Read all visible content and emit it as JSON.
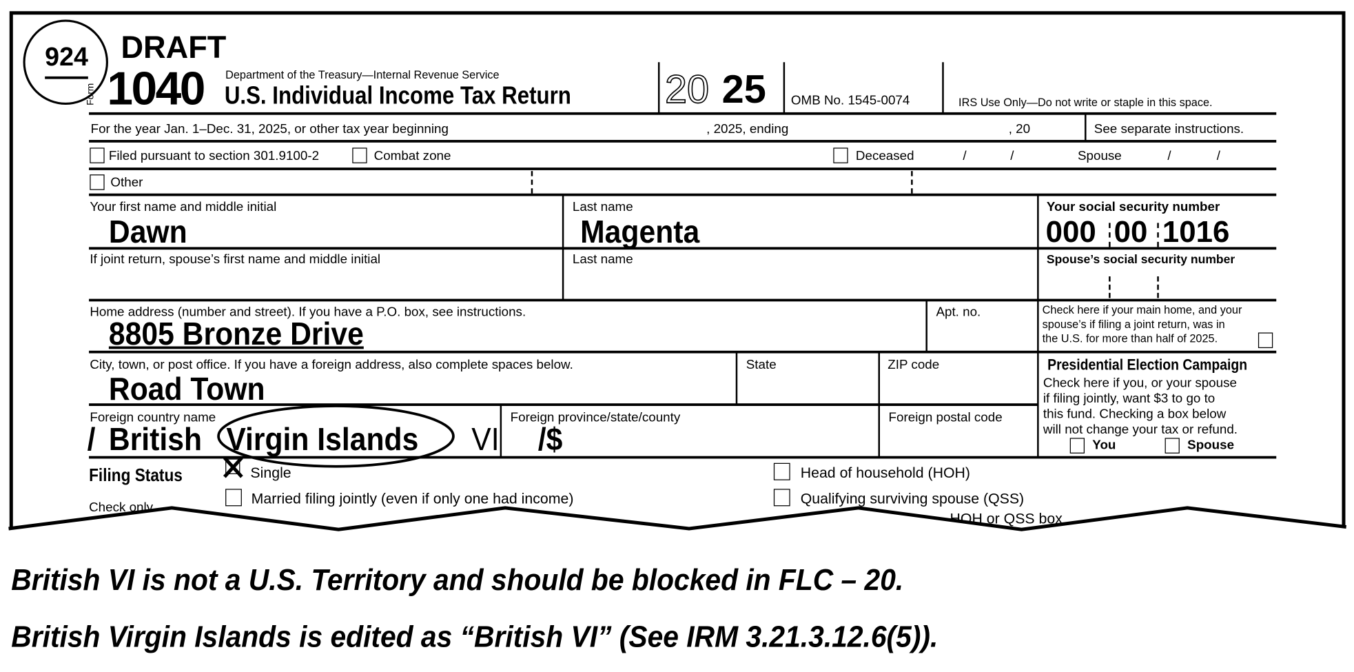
{
  "stamp": {
    "code": "924"
  },
  "header": {
    "draft": "DRAFT",
    "form_word": "Form",
    "form_number": "1040",
    "department": "Department of the Treasury—Internal Revenue Service",
    "title": "U.S. Individual Income Tax Return",
    "year_outline": "20",
    "year_bold": "25",
    "omb": "OMB No. 1545-0074",
    "irs_use": "IRS Use Only—Do not write or staple in this space."
  },
  "tax_year_row": {
    "label": "For the year Jan. 1–Dec. 31, 2025, or other tax year beginning",
    "ending": ", 2025, ending",
    "twenty": ", 20",
    "instructions": "See separate instructions."
  },
  "checkbox_row": {
    "filed_pursuant": "Filed pursuant to section 301.9100-2",
    "combat_zone": "Combat zone",
    "deceased": "Deceased",
    "slash": "/",
    "spouse": "Spouse",
    "other": "Other"
  },
  "names": {
    "first_label": "Your first name and middle initial",
    "first_value": "Dawn",
    "last_label": "Last name",
    "last_value": "Magenta",
    "ssn_label": "Your social security number",
    "ssn_parts": [
      "000",
      "00",
      "1016"
    ],
    "spouse_first_label": "If joint return, spouse’s first name and middle initial",
    "spouse_last_label": "Last name",
    "spouse_ssn_label": "Spouse’s social security number"
  },
  "address": {
    "home_label": "Home address (number and street). If you have a P.O. box, see instructions.",
    "home_value": "8805 Bronze Drive",
    "apt_label": "Apt. no.",
    "main_home_text": [
      "Check here if your main home, and your",
      "spouse’s if filing a joint return, was in",
      "the U.S. for more than half of 2025."
    ],
    "city_label": "City, town, or post office. If you have a foreign address, also complete spaces below.",
    "city_value": "Road Town",
    "state_label": "State",
    "zip_label": "ZIP code",
    "foreign_country_label": "Foreign country name",
    "foreign_country_value": {
      "slash": "/",
      "british": "British",
      "circled": "Virgin Islands",
      "vi": "VI",
      "tail": "/$"
    },
    "foreign_province_label": "Foreign province/state/county",
    "foreign_postal_label": "Foreign postal code"
  },
  "presidential": {
    "title": "Presidential Election Campaign",
    "text": [
      "Check here if you, or your spouse",
      "if filing jointly, want $3 to go to",
      "this fund. Checking a box below",
      "will not change your tax or refund."
    ],
    "you": "You",
    "spouse": "Spouse"
  },
  "filing_status": {
    "title": "Filing Status",
    "check_only": "Check only",
    "options": [
      {
        "label": "Single",
        "checked": true
      },
      {
        "label": "Married filing jointly (even if only one had income)",
        "checked": false
      },
      {
        "label": "Head of household (HOH)",
        "checked": false
      },
      {
        "label": "Qualifying surviving spouse (QSS)",
        "checked": false
      }
    ],
    "cut_text": "HOH or QSS box"
  },
  "notes": [
    "British VI is not a U.S. Territory and should be blocked in FLC – 20.",
    "British Virgin Islands is edited as “British VI” (See IRM 3.21.3.12.6(5))."
  ]
}
